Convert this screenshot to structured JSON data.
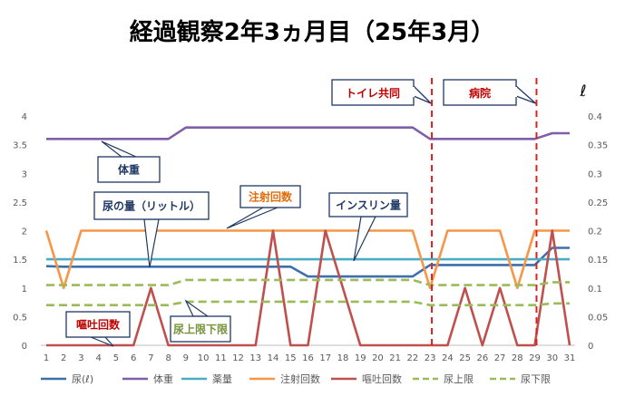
{
  "chart_data": {
    "type": "line",
    "title": "経過観察2年3ヵ月目（25年3月）",
    "x": [
      1,
      2,
      3,
      4,
      5,
      6,
      7,
      8,
      9,
      10,
      11,
      12,
      13,
      14,
      15,
      16,
      17,
      18,
      19,
      20,
      21,
      22,
      23,
      24,
      25,
      26,
      27,
      28,
      29,
      30,
      31
    ],
    "y_left": {
      "ylim": [
        0,
        4
      ],
      "ticks": [
        "0",
        "0.5",
        "1",
        "1.5",
        "2",
        "2.5",
        "3",
        "3.5",
        "4"
      ]
    },
    "y_right": {
      "unit": "ℓ",
      "ylim": [
        0,
        0.4
      ],
      "ticks": [
        "0",
        "0.05",
        "0.1",
        "0.15",
        "0.2",
        "0.25",
        "0.3",
        "0.35",
        "0.4"
      ]
    },
    "grid": false,
    "legend_position": "bottom",
    "series": [
      {
        "name": "尿(ℓ)",
        "axis": "right",
        "color": "#3c6fad",
        "dash": false,
        "values": [
          0.138,
          0.137,
          0.137,
          0.137,
          0.137,
          0.137,
          0.137,
          0.137,
          0.137,
          0.137,
          0.137,
          0.137,
          0.137,
          0.137,
          0.137,
          0.12,
          0.12,
          0.12,
          0.12,
          0.12,
          0.12,
          0.12,
          0.14,
          0.14,
          0.14,
          0.14,
          0.14,
          0.14,
          0.14,
          0.17,
          0.17
        ]
      },
      {
        "name": "体重",
        "axis": "left",
        "color": "#7f5fa5",
        "dash": false,
        "values": [
          3.6,
          3.6,
          3.6,
          3.6,
          3.6,
          3.6,
          3.6,
          3.6,
          3.8,
          3.8,
          3.8,
          3.8,
          3.8,
          3.8,
          3.8,
          3.8,
          3.8,
          3.8,
          3.8,
          3.8,
          3.8,
          3.8,
          3.6,
          3.6,
          3.6,
          3.6,
          3.6,
          3.6,
          3.6,
          3.7,
          3.7
        ]
      },
      {
        "name": "薬量",
        "axis": "left",
        "color": "#4bacc6",
        "dash": false,
        "values": [
          1.5,
          1.5,
          1.5,
          1.5,
          1.5,
          1.5,
          1.5,
          1.5,
          1.5,
          1.5,
          1.5,
          1.5,
          1.5,
          1.5,
          1.5,
          1.5,
          1.5,
          1.5,
          1.5,
          1.5,
          1.5,
          1.5,
          1.5,
          1.5,
          1.5,
          1.5,
          1.5,
          1.5,
          1.5,
          1.5,
          1.5
        ]
      },
      {
        "name": "注射回数",
        "axis": "left",
        "color": "#f79646",
        "dash": false,
        "values": [
          2,
          1,
          2,
          2,
          2,
          2,
          2,
          2,
          2,
          2,
          2,
          2,
          2,
          2,
          2,
          2,
          2,
          2,
          2,
          2,
          2,
          2,
          1,
          2,
          2,
          2,
          2,
          1,
          2,
          2,
          2
        ]
      },
      {
        "name": "嘔吐回数",
        "axis": "left",
        "color": "#c0504d",
        "dash": false,
        "values": [
          0,
          0,
          0,
          0,
          0,
          0,
          1,
          0,
          0,
          0,
          0,
          0,
          0,
          2,
          0,
          0,
          2,
          1,
          0,
          0,
          0,
          0,
          0,
          0,
          1,
          0,
          1,
          0,
          0,
          2,
          0
        ]
      },
      {
        "name": "尿上限",
        "axis": "right",
        "color": "#9bbb59",
        "dash": true,
        "values": [
          0.105,
          0.105,
          0.105,
          0.105,
          0.105,
          0.105,
          0.105,
          0.105,
          0.114,
          0.114,
          0.114,
          0.114,
          0.114,
          0.114,
          0.114,
          0.114,
          0.114,
          0.114,
          0.114,
          0.114,
          0.114,
          0.114,
          0.105,
          0.105,
          0.105,
          0.105,
          0.105,
          0.105,
          0.105,
          0.11,
          0.11
        ]
      },
      {
        "name": "尿下限",
        "axis": "right",
        "color": "#9bbb59",
        "dash": true,
        "values": [
          0.07,
          0.07,
          0.07,
          0.07,
          0.07,
          0.07,
          0.07,
          0.07,
          0.076,
          0.076,
          0.076,
          0.076,
          0.076,
          0.076,
          0.076,
          0.076,
          0.076,
          0.076,
          0.076,
          0.076,
          0.076,
          0.076,
          0.07,
          0.07,
          0.07,
          0.07,
          0.07,
          0.07,
          0.07,
          0.073,
          0.073
        ]
      }
    ],
    "event_lines": [
      {
        "x": 23.1,
        "label": "トイレ共同",
        "color": "#e02020"
      },
      {
        "x": 29.1,
        "label": "病院",
        "color": "#e02020"
      }
    ],
    "annotations": [
      {
        "label": "体重",
        "text_color": "#1f3864",
        "target_series": "体重"
      },
      {
        "label": "尿の量（リットル）",
        "text_color": "#1f3864",
        "target_series": "尿(ℓ)"
      },
      {
        "label": "注射回数",
        "text_color": "#e26b0a",
        "target_series": "注射回数"
      },
      {
        "label": "インスリン量",
        "text_color": "#1f3864",
        "target_series": "薬量"
      },
      {
        "label": "嘔吐回数",
        "text_color": "#c00000",
        "target_series": "嘔吐回数"
      },
      {
        "label": "尿上限下限",
        "text_color": "#76933c",
        "target_series": "尿下限"
      }
    ]
  }
}
